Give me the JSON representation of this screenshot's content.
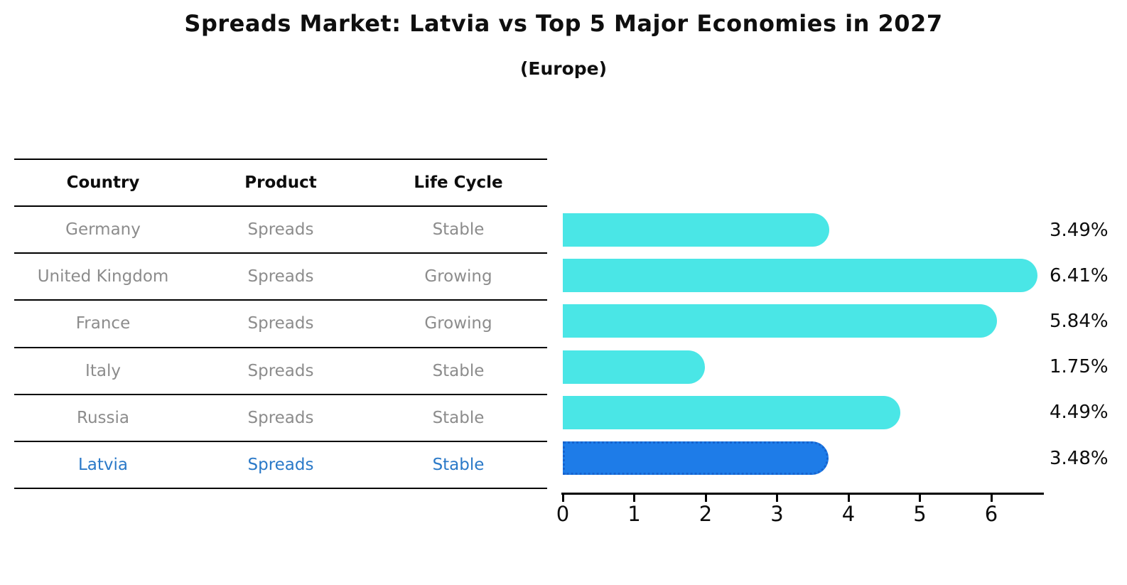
{
  "title": "Spreads Market: Latvia vs Top 5 Major Economies in 2027",
  "subtitle": "(Europe)",
  "table": {
    "headers": [
      "Country",
      "Product",
      "Life Cycle"
    ],
    "rows": [
      {
        "country": "Germany",
        "product": "Spreads",
        "life_cycle": "Stable",
        "highlight": false
      },
      {
        "country": "United Kingdom",
        "product": "Spreads",
        "life_cycle": "Growing",
        "highlight": false
      },
      {
        "country": "France",
        "product": "Spreads",
        "life_cycle": "Growing",
        "highlight": false
      },
      {
        "country": "Italy",
        "product": "Spreads",
        "life_cycle": "Stable",
        "highlight": false
      },
      {
        "country": "Russia",
        "product": "Spreads",
        "life_cycle": "Stable",
        "highlight": false
      },
      {
        "country": "Latvia",
        "product": "Spreads",
        "life_cycle": "Stable",
        "highlight": true
      }
    ]
  },
  "chart_data": {
    "type": "bar",
    "orientation": "horizontal",
    "title": "Spreads Market: Latvia vs Top 5 Major Economies in 2027",
    "subtitle": "(Europe)",
    "categories": [
      "Germany",
      "United Kingdom",
      "France",
      "Italy",
      "Russia",
      "Latvia"
    ],
    "values": [
      3.49,
      6.41,
      5.84,
      1.75,
      4.49,
      3.48
    ],
    "value_labels": [
      "3.49%",
      "6.41%",
      "5.84%",
      "1.75%",
      "4.49%",
      "3.48%"
    ],
    "highlight_category": "Latvia",
    "x_ticks": [
      "0",
      "1",
      "2",
      "3",
      "4",
      "5",
      "6"
    ],
    "xlim": [
      0,
      6.75
    ],
    "grid": false,
    "legend": "none",
    "colors": {
      "bar": "#4ae6e6",
      "highlight_bar": "#1e7ce8",
      "highlight_border": "#1663ce",
      "highlight_text": "#2a79c8",
      "row_text": "#8c8c8c",
      "axis": "#000000"
    }
  }
}
